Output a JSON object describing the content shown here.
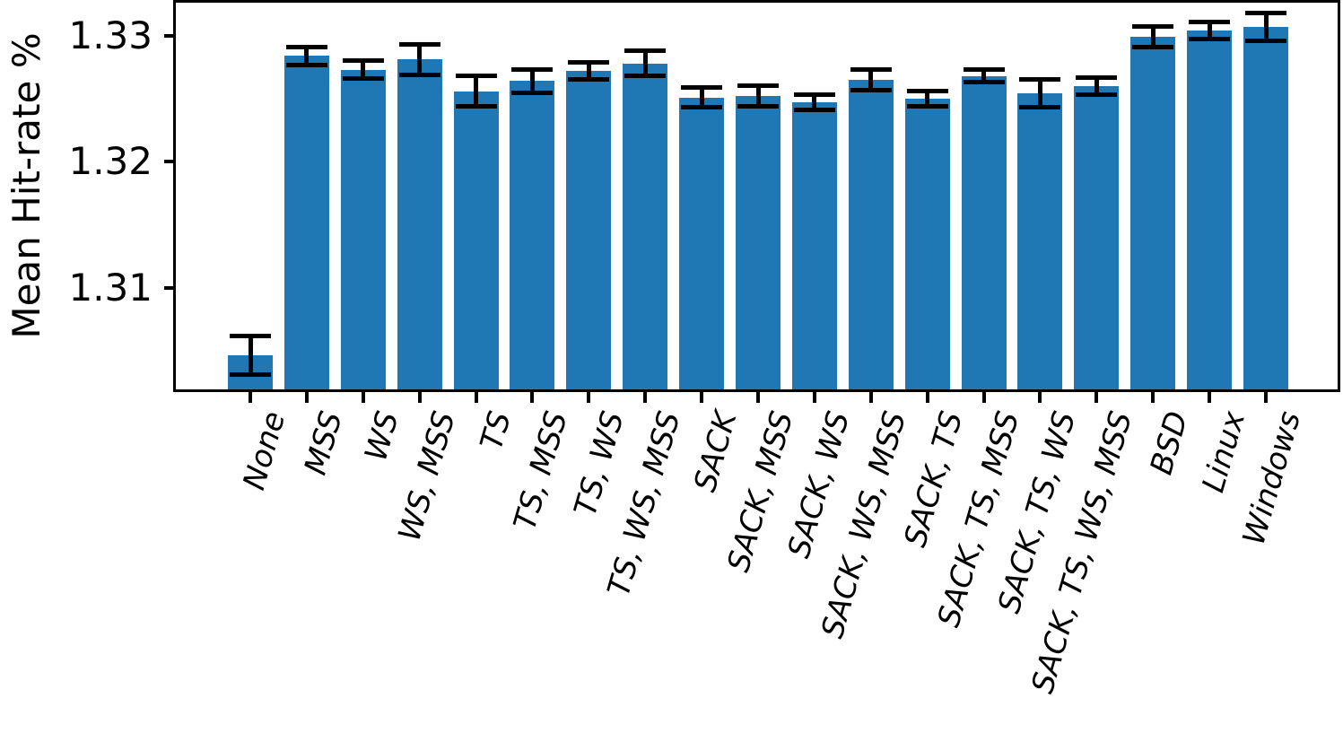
{
  "figure": {
    "background_color": "#ffffff",
    "bar_color": "#1f77b4",
    "error_bar_color": "#000000",
    "axis_color": "#000000",
    "text_color": "#000000"
  },
  "chart_data": {
    "type": "bar",
    "title": "",
    "xlabel": "",
    "ylabel": "Mean Hit-rate %",
    "categories": [
      "None",
      "MSS",
      "WS",
      "WS, MSS",
      "TS",
      "TS, MSS",
      "TS, WS",
      "TS, WS, MSS",
      "SACK",
      "SACK, MSS",
      "SACK, WS",
      "SACK, WS, MSS",
      "SACK, TS",
      "SACK, TS, MSS",
      "SACK, TS, WS",
      "SACK, TS, WS, MSS",
      "BSD",
      "Linux",
      "Windows"
    ],
    "values": [
      1.3047,
      1.3284,
      1.3273,
      1.3281,
      1.3256,
      1.3264,
      1.3272,
      1.3278,
      1.3251,
      1.3252,
      1.3247,
      1.3265,
      1.325,
      1.3268,
      1.3254,
      1.326,
      1.3299,
      1.3304,
      1.3307
    ],
    "error_bars": [
      0.0015,
      0.0007,
      0.0007,
      0.0012,
      0.0012,
      0.0009,
      0.0007,
      0.001,
      0.0008,
      0.0008,
      0.0006,
      0.0008,
      0.0006,
      0.0005,
      0.0011,
      0.0007,
      0.0008,
      0.0007,
      0.0011
    ],
    "ylim": [
      1.302,
      1.3326
    ],
    "yticks": [
      {
        "value": 1.31,
        "label": "1.31"
      },
      {
        "value": 1.32,
        "label": "1.32"
      },
      {
        "value": 1.33,
        "label": "1.33"
      }
    ],
    "grid": false,
    "legend": null,
    "x_tick_label_rotation_deg": 74,
    "x_tick_label_style": "italic"
  }
}
